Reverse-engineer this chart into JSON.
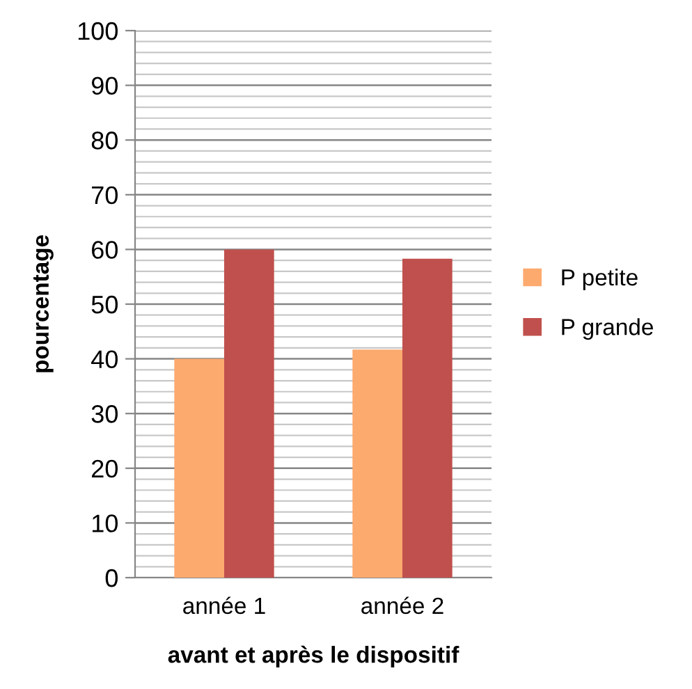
{
  "chart_data": {
    "type": "bar",
    "xlabel": "avant et après le dispositif",
    "ylabel": "pourcentage",
    "categories": [
      "année 1",
      "année 2"
    ],
    "series": [
      {
        "name": "P petite",
        "color": "#fdaa6f",
        "values": [
          40,
          41.7
        ]
      },
      {
        "name": "P grande",
        "color": "#c0504d",
        "values": [
          60,
          58.3
        ]
      }
    ],
    "ylim": [
      0,
      100
    ],
    "yticks": [
      0,
      10,
      20,
      30,
      40,
      50,
      60,
      70,
      80,
      90,
      100
    ],
    "grid": "y",
    "legend": "right"
  }
}
